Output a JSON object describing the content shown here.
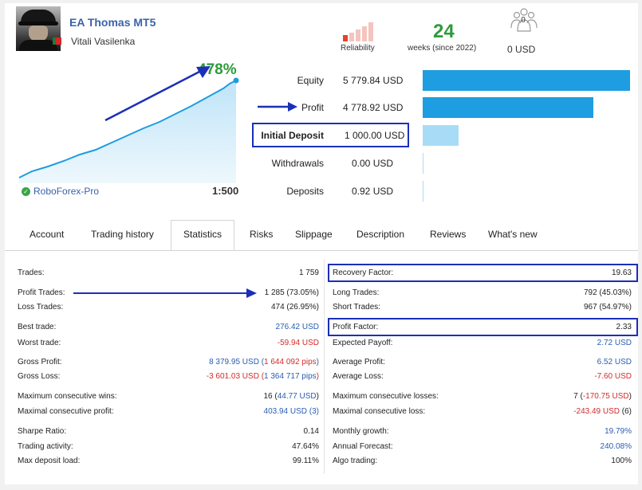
{
  "header": {
    "title": "EA Thomas MT5",
    "author": "Vitali Vasilenka"
  },
  "reliability": {
    "label": "Reliability",
    "bars_filled": 1,
    "bars_total": 5
  },
  "weeks": {
    "value": "24",
    "label": "weeks (since 2022)"
  },
  "subscribers": {
    "count": "0",
    "label": "0 USD"
  },
  "growth": {
    "value": "478%",
    "broker": "RoboForex-Pro",
    "leverage": "1:500"
  },
  "metrics": [
    {
      "label": "Equity",
      "value": "5 779.84 USD",
      "amount": 5779.84
    },
    {
      "label": "Profit",
      "value": "4 778.92 USD",
      "amount": 4778.92
    },
    {
      "label": "Initial Deposit",
      "value": "1 000.00 USD",
      "amount": 1000.0
    },
    {
      "label": "Withdrawals",
      "value": "0.00 USD",
      "amount": 0
    },
    {
      "label": "Deposits",
      "value": "0.92 USD",
      "amount": 0.92
    }
  ],
  "tabs": [
    "Account",
    "Trading history",
    "Statistics",
    "Risks",
    "Slippage",
    "Description",
    "Reviews",
    "What's new"
  ],
  "active_tab": "Statistics",
  "stats_left": [
    {
      "label": "Trades:",
      "value": "1 759"
    },
    {
      "label": "Profit Trades:",
      "value": "1 285 (73.05%)"
    },
    {
      "label": "Loss Trades:",
      "value": "474 (26.95%)"
    },
    {
      "label": "Best trade:",
      "value": "276.42 USD"
    },
    {
      "label": "Worst trade:",
      "value": "-59.94 USD"
    },
    {
      "label": "Gross Profit:",
      "v1": "8 379.95 USD (",
      "v2": "1 644 092 pips",
      "v3": ")"
    },
    {
      "label": "Gross Loss:",
      "v1": "-3 601.03 USD (",
      "v2": "1 364 717 pips",
      "v3": ")"
    },
    {
      "label": "Maximum consecutive wins:",
      "v1": "16 (",
      "v2": "44.77 USD",
      "v3": ")"
    },
    {
      "label": "Maximal consecutive profit:",
      "v1": "403.94 USD (3)"
    },
    {
      "label": "Sharpe Ratio:",
      "value": "0.14"
    },
    {
      "label": "Trading activity:",
      "value": "47.64%"
    },
    {
      "label": "Max deposit load:",
      "value": "99.11%"
    }
  ],
  "stats_right": [
    {
      "label": "Recovery Factor:",
      "value": "19.63"
    },
    {
      "label": "Long Trades:",
      "value": "792 (45.03%)"
    },
    {
      "label": "Short Trades:",
      "value": "967 (54.97%)"
    },
    {
      "label": "Profit Factor:",
      "value": "2.33"
    },
    {
      "label": "Expected Payoff:",
      "value": "2.72 USD"
    },
    {
      "label": "Average Profit:",
      "value": "6.52 USD"
    },
    {
      "label": "Average Loss:",
      "value": "-7.60 USD"
    },
    {
      "label": "Maximum consecutive losses:",
      "v1": "7 (",
      "v2": "-170.75 USD",
      "v3": ")"
    },
    {
      "label": "Maximal consecutive loss:",
      "v1": "-243.49 USD",
      "v2": " (6)"
    },
    {
      "label": "Monthly growth:",
      "value": "19.79%"
    },
    {
      "label": "Annual Forecast:",
      "value": "240.08%"
    },
    {
      "label": "Algo trading:",
      "value": "100%"
    }
  ],
  "colors": {
    "accent_blue": "#1e9de0",
    "light_bar": "#a8dcf6",
    "green": "#2f9a3b",
    "red": "#d32b2b",
    "link": "#2a5db0",
    "annotation": "#1c2fb8"
  }
}
